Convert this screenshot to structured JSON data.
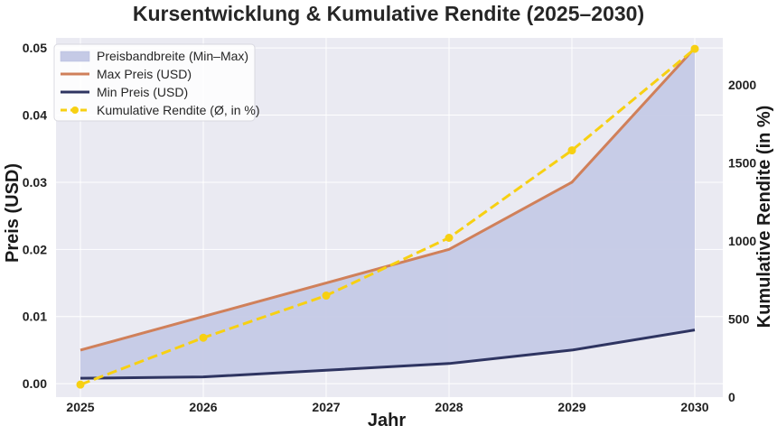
{
  "chart_data": {
    "type": "line",
    "title": "Kursentwicklung & Kumulative Rendite (2025–2030)",
    "xlabel": "Jahr",
    "ylabel": "Preis (USD)",
    "y2label": "Kumulative Rendite (in %)",
    "categories": [
      "2025",
      "2026",
      "2027",
      "2028",
      "2029",
      "2030"
    ],
    "x": [
      2025,
      2026,
      2027,
      2028,
      2029,
      2030
    ],
    "ylim": [
      -0.002,
      0.0515
    ],
    "y2lim": [
      0,
      2300
    ],
    "yticks": [
      0.0,
      0.01,
      0.02,
      0.03,
      0.04,
      0.05
    ],
    "ytick_labels": [
      "0.00",
      "0.01",
      "0.02",
      "0.03",
      "0.04",
      "0.05"
    ],
    "y2ticks": [
      0,
      500,
      1000,
      1500,
      2000
    ],
    "y2tick_labels": [
      "0",
      "500",
      "1000",
      "1500",
      "2000"
    ],
    "grid": true,
    "legend_position": "top-left",
    "series": [
      {
        "name": "Preisbandbreite (Min–Max)",
        "kind": "band",
        "color": "#c5cae6"
      },
      {
        "name": "Max Preis (USD)",
        "kind": "line",
        "axis": "left",
        "color": "#d0805a",
        "values": [
          0.005,
          0.01,
          0.015,
          0.02,
          0.03,
          0.05
        ]
      },
      {
        "name": "Min Preis (USD)",
        "kind": "line",
        "axis": "left",
        "color": "#2e3461",
        "values": [
          0.0008,
          0.001,
          0.002,
          0.003,
          0.005,
          0.008
        ]
      },
      {
        "name": "Kumulative Rendite (Ø, in %)",
        "kind": "dashed-line-markers",
        "axis": "right",
        "color": "#f7d012",
        "values": [
          80,
          380,
          650,
          1020,
          1580,
          2230
        ]
      }
    ]
  }
}
